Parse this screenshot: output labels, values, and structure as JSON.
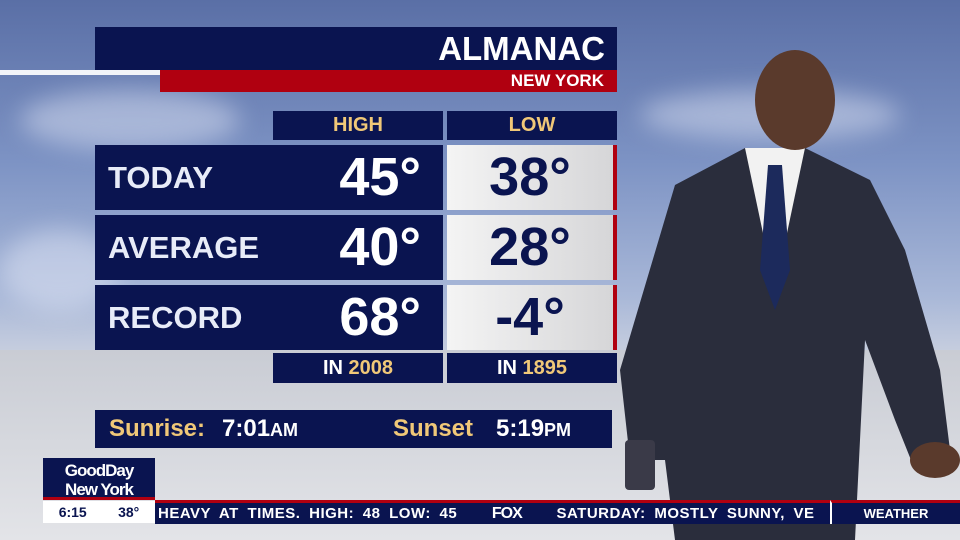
{
  "header": {
    "title": "ALMANAC",
    "location": "NEW YORK"
  },
  "columns": {
    "high": "HIGH",
    "low": "LOW"
  },
  "rows": [
    {
      "label": "TODAY",
      "high": "45°",
      "low": "38°"
    },
    {
      "label": "AVERAGE",
      "high": "40°",
      "low": "28°"
    },
    {
      "label": "RECORD",
      "high": "68°",
      "low": "-4°"
    }
  ],
  "record_years": {
    "prefix": "IN",
    "high": "2008",
    "low": "1895"
  },
  "sun": {
    "sunrise_label": "Sunrise:",
    "sunrise_time": "7:01",
    "sunrise_ampm": "AM",
    "sunset_label": "Sunset",
    "sunset_time": "5:19",
    "sunset_ampm": "PM"
  },
  "show": {
    "logo_line1": "GoodDay",
    "logo_line2": "New York",
    "time": "6:15",
    "temp": "38°"
  },
  "ticker": {
    "text_before": "HEAVY AT TIMES.  HIGH: 48  LOW: 45",
    "network": "FOX",
    "text_after": "SATURDAY:  MOSTLY SUNNY, VE",
    "segment": "WEATHER"
  },
  "colors": {
    "navy": "#0a1450",
    "red": "#b00010",
    "gold": "#f0c878"
  }
}
